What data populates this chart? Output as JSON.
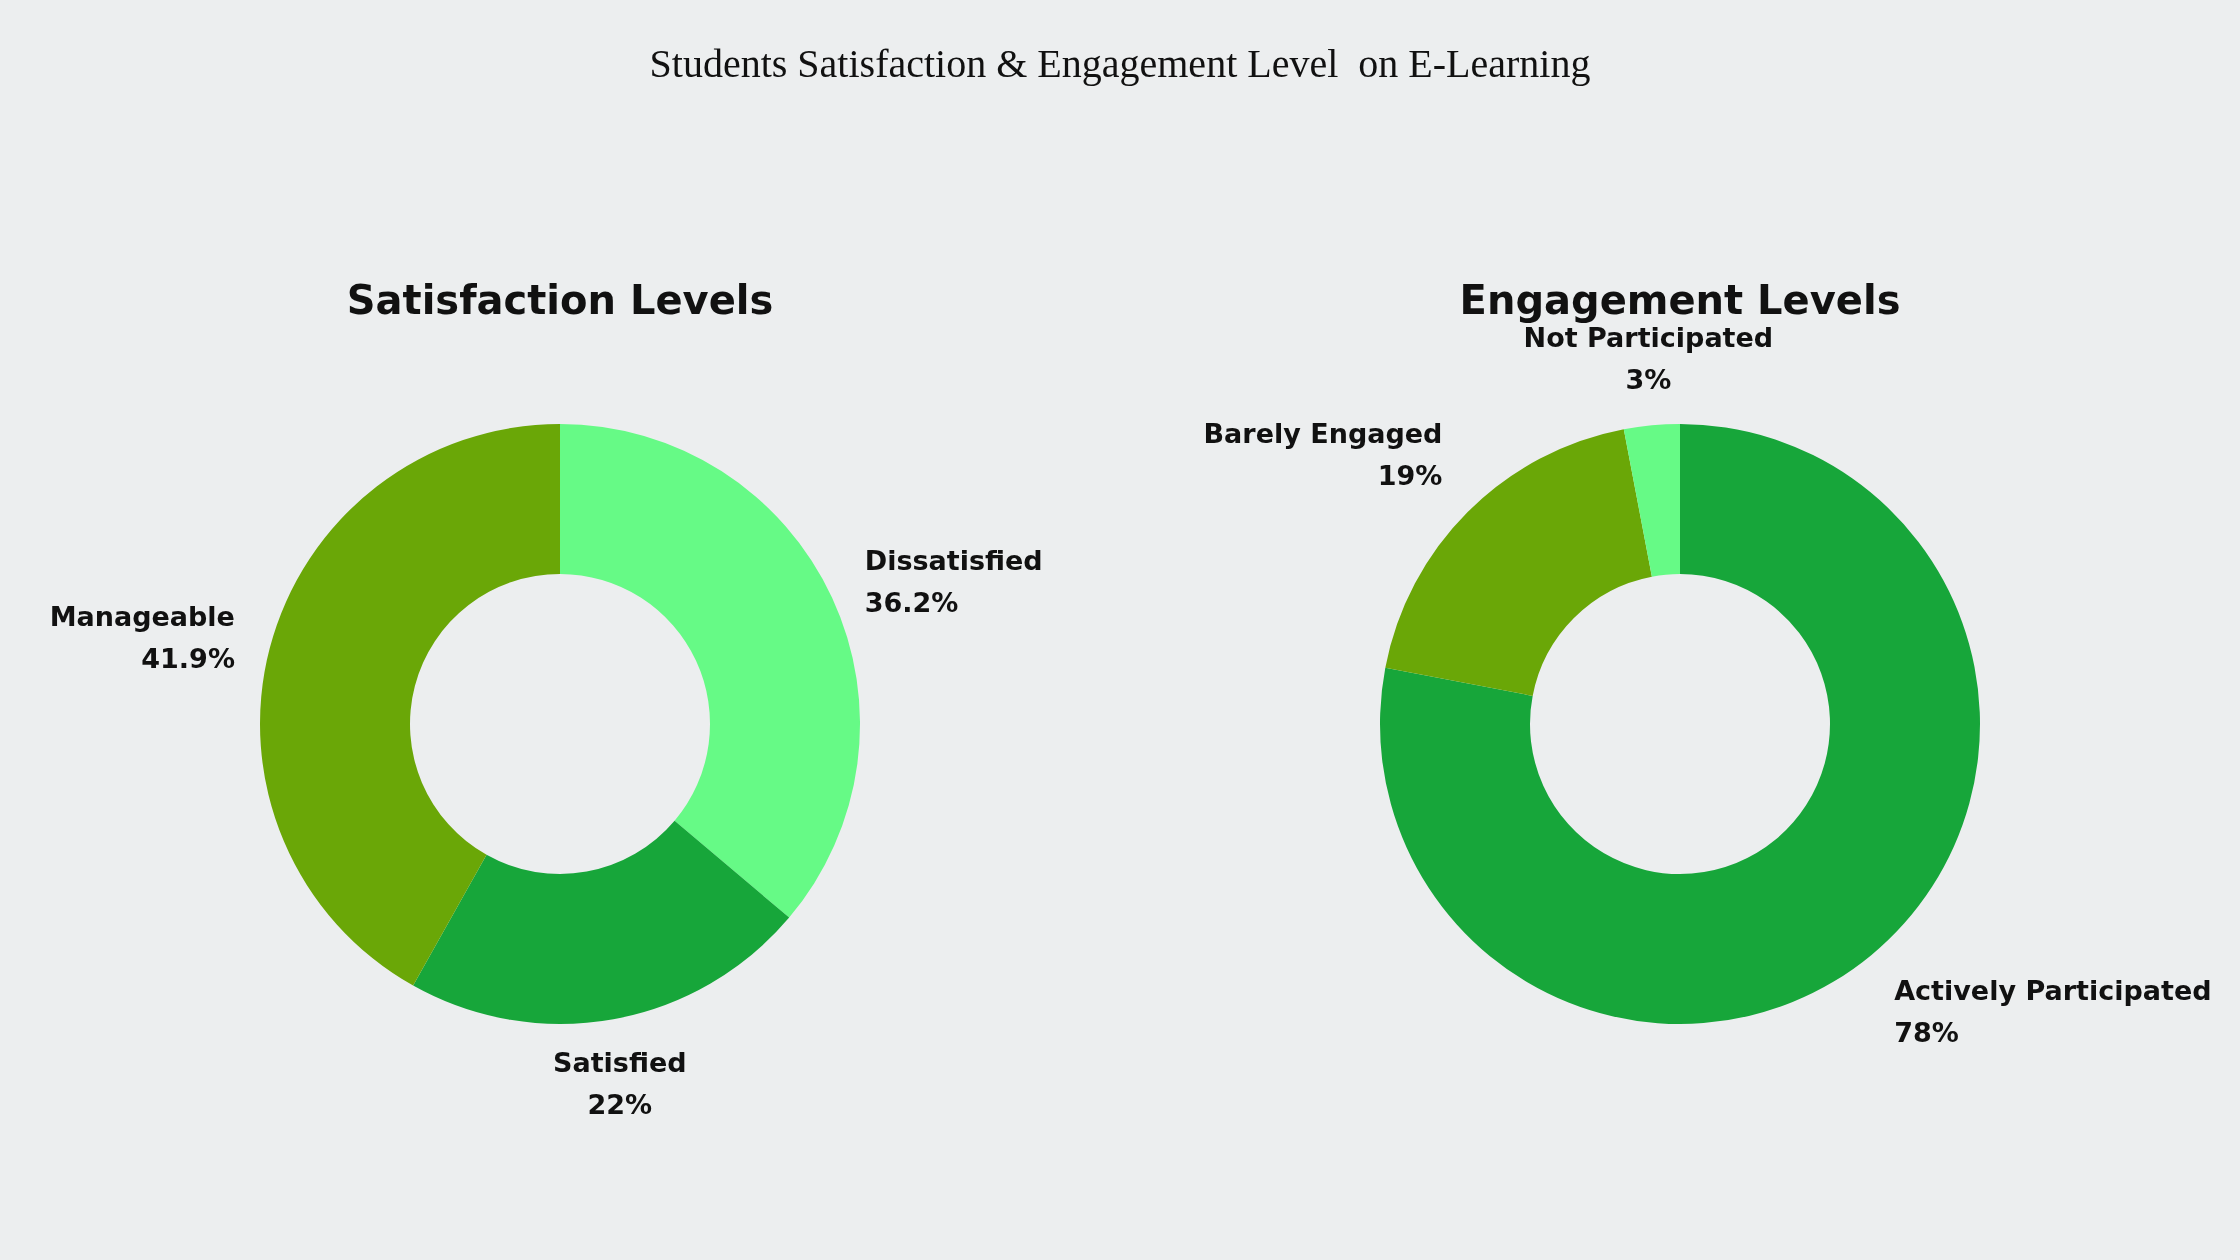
{
  "chart_data": [
    {
      "type": "other",
      "title": "Students Satisfaction & Engagement Level  on E-Learning"
    },
    {
      "type": "donut",
      "title": "Satisfaction Levels",
      "categories": [
        "Dissatisfied",
        "Satisfied",
        "Manageable"
      ],
      "values": [
        36.2,
        22,
        41.9
      ],
      "colors": [
        "#66fa86",
        "#17a63a",
        "#6aa707"
      ],
      "value_labels": [
        "36.2%",
        "22%",
        "41.9%"
      ],
      "legend": false
    },
    {
      "type": "donut",
      "title": "Engagement Levels",
      "categories": [
        "Actively Participated",
        "Barely Engaged",
        "Not Participated"
      ],
      "values": [
        78,
        19,
        3
      ],
      "colors": [
        "#17a63a",
        "#6aa707",
        "#66fa86"
      ],
      "value_labels": [
        "78%",
        "19%",
        "3%"
      ],
      "legend": false
    }
  ]
}
